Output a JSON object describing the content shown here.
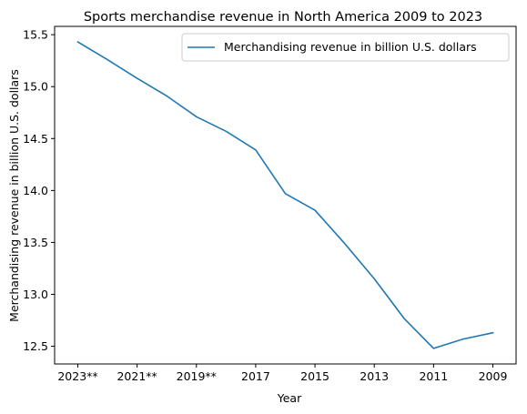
{
  "chart_data": {
    "type": "line",
    "title": "Sports merchandise revenue in North America 2009 to 2023",
    "xlabel": "Year",
    "ylabel": "Merchandising revenue in billion U.S. dollars",
    "x": [
      "2023**",
      "2022**",
      "2021**",
      "2020**",
      "2019**",
      "2018",
      "2017",
      "2016",
      "2015",
      "2014",
      "2013",
      "2012",
      "2011",
      "2010",
      "2009"
    ],
    "xtick_labels": [
      "2023**",
      "2021**",
      "2019**",
      "2017",
      "2015",
      "2013",
      "2011",
      "2009"
    ],
    "ylim": [
      12.33,
      15.58
    ],
    "yticks": [
      "12.5",
      "13.0",
      "13.5",
      "14.0",
      "14.5",
      "15.0",
      "15.5"
    ],
    "series": [
      {
        "name": "Merchandising revenue in billion U.S. dollars",
        "color": "#1f77b4",
        "values": [
          15.43,
          15.26,
          15.08,
          14.91,
          14.71,
          14.57,
          14.39,
          13.97,
          13.81,
          13.49,
          13.15,
          12.77,
          12.48,
          12.57,
          12.63
        ]
      }
    ],
    "legend_position": "top-right",
    "grid": false
  }
}
